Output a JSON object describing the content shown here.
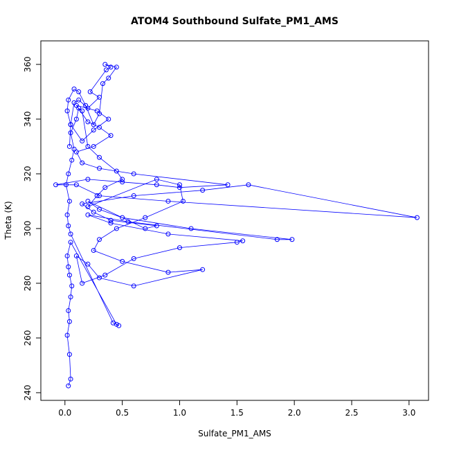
{
  "chart_data": {
    "type": "line",
    "title": "ATOM4 Southbound Sulfate_PM1_AMS",
    "x_label": "Sulfate_PM1_AMS",
    "y_label": "Theta (K)",
    "x": [
      0.03,
      0.05,
      0.04,
      0.02,
      0.04,
      0.03,
      0.05,
      0.06,
      0.04,
      0.03,
      0.02,
      0.05,
      0.45,
      0.47,
      0.42,
      0.05,
      0.03,
      0.02,
      0.04,
      0.01,
      0.03,
      0.06,
      0.08,
      0.05,
      0.1,
      0.12,
      0.15,
      0.2,
      0.3,
      0.45,
      0.5,
      0.35,
      0.28,
      0.2,
      0.8,
      1.0,
      1.03,
      0.7,
      0.45,
      0.3,
      0.25,
      0.5,
      0.9,
      1.2,
      0.6,
      0.3,
      0.2,
      0.1,
      0.15,
      0.35,
      0.6,
      1.0,
      1.5,
      1.55,
      0.9,
      0.4,
      0.2,
      0.55,
      1.85,
      1.98,
      1.1,
      0.5,
      0.3,
      0.2,
      0.7,
      0.8,
      0.4,
      0.25,
      0.15,
      0.6,
      1.2,
      1.6,
      3.07,
      0.9,
      0.3,
      0.1,
      -0.08,
      0.2,
      0.5,
      0.8,
      1.0,
      1.42,
      0.6,
      0.3,
      0.15,
      0.1,
      0.25,
      0.4,
      0.3,
      0.2,
      0.1,
      0.28,
      0.38,
      0.25,
      0.15,
      0.05,
      0.08,
      0.12,
      0.2,
      0.3,
      0.22,
      0.36,
      0.4,
      0.35,
      0.45,
      0.38,
      0.33,
      0.3,
      0.25,
      0.18,
      0.12,
      0.08,
      0.03,
      0.02,
      0.05,
      0.04
    ],
    "series": [
      {
        "color": "#0000ff",
        "values": [
          242.5,
          245,
          254,
          261,
          266,
          270,
          275,
          279,
          283,
          286,
          290,
          295,
          265,
          264.5,
          265.5,
          298,
          301,
          305,
          310,
          316,
          320,
          325,
          329,
          335,
          340,
          344,
          343,
          330,
          326,
          321,
          318,
          315,
          312,
          308,
          318,
          316,
          310,
          304,
          300,
          296,
          292,
          288,
          284,
          285,
          279,
          282,
          287,
          290,
          280,
          283,
          289,
          293,
          295,
          295.5,
          298,
          302,
          305,
          302.5,
          296,
          296,
          300,
          304,
          307,
          310,
          300,
          301,
          303,
          306,
          309,
          312,
          314,
          316,
          304,
          310,
          312,
          316,
          316,
          318,
          317,
          316,
          315,
          316,
          320,
          322,
          324,
          328,
          330,
          334,
          337,
          339,
          345,
          343,
          340,
          336,
          332,
          338,
          346,
          347,
          344,
          348,
          350,
          358,
          359,
          360,
          359,
          355,
          353,
          342,
          338,
          345,
          350,
          351,
          347,
          343,
          338,
          330
        ]
      }
    ],
    "xlim": [
      -0.21,
      3.17
    ],
    "ylim": [
      237.2,
      368.6
    ],
    "xticks": [
      {
        "value": 0,
        "label": "0.0"
      },
      0.5,
      {
        "value": 1,
        "label": "1.0"
      },
      1.5,
      {
        "value": 2,
        "label": "2.0"
      },
      2.5,
      {
        "value": 3,
        "label": "3.0"
      }
    ],
    "yticks": [
      240,
      260,
      280,
      300,
      320,
      340,
      360
    ],
    "grid": false
  }
}
